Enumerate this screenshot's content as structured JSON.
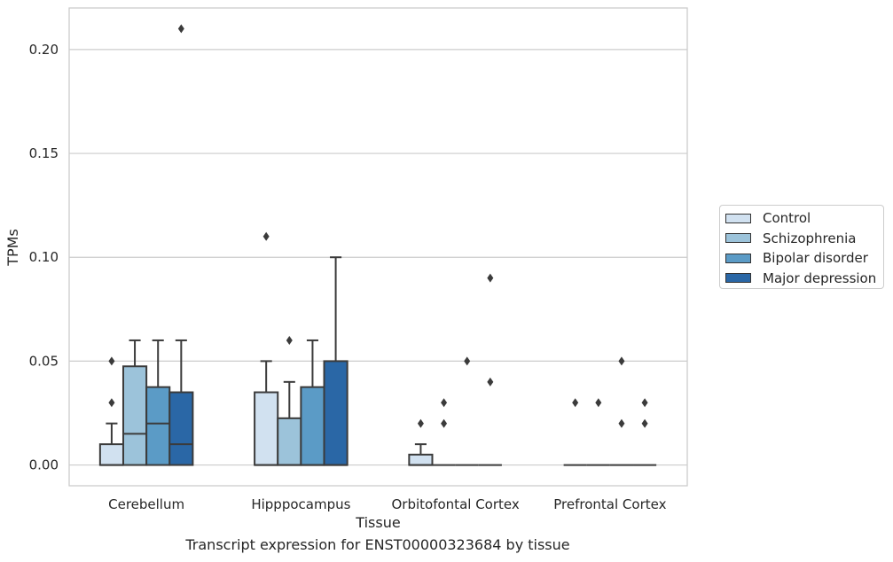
{
  "chart_data": {
    "type": "box",
    "xlabel": "Tissue",
    "ylabel": "TPMs",
    "caption": "Transcript expression for ENST00000323684 by tissue",
    "ylim": [
      -0.01,
      0.22
    ],
    "yticks": [
      0.0,
      0.05,
      0.1,
      0.15,
      0.2
    ],
    "ytick_labels": [
      "0.00",
      "0.05",
      "0.10",
      "0.15",
      "0.20"
    ],
    "grid": "horizontal",
    "legend_position": "center-right outside",
    "categories": [
      "Cerebellum",
      "Hipppocampus",
      "Orbitofontal Cortex",
      "Prefrontal Cortex"
    ],
    "series": [
      {
        "name": "Control",
        "color": "#d1e1f0",
        "boxes": [
          {
            "q1": 0.0,
            "median": 0.0,
            "q3": 0.01,
            "whislo": 0.0,
            "whishi": 0.02,
            "fliers": [
              0.03,
              0.05
            ]
          },
          {
            "q1": 0.0,
            "median": 0.0,
            "q3": 0.035,
            "whislo": 0.0,
            "whishi": 0.05,
            "fliers": [
              0.11
            ]
          },
          {
            "q1": 0.0,
            "median": 0.0,
            "q3": 0.005,
            "whislo": 0.0,
            "whishi": 0.01,
            "fliers": [
              0.02
            ]
          },
          {
            "q1": 0.0,
            "median": 0.0,
            "q3": 0.0,
            "whislo": 0.0,
            "whishi": 0.0,
            "fliers": [
              0.03
            ]
          }
        ]
      },
      {
        "name": "Schizophrenia",
        "color": "#9cc3da",
        "boxes": [
          {
            "q1": 0.0,
            "median": 0.015,
            "q3": 0.0475,
            "whislo": 0.0,
            "whishi": 0.06,
            "fliers": []
          },
          {
            "q1": 0.0,
            "median": 0.0,
            "q3": 0.0225,
            "whislo": 0.0,
            "whishi": 0.04,
            "fliers": [
              0.06
            ]
          },
          {
            "q1": 0.0,
            "median": 0.0,
            "q3": 0.0,
            "whislo": 0.0,
            "whishi": 0.0,
            "fliers": [
              0.02,
              0.03
            ]
          },
          {
            "q1": 0.0,
            "median": 0.0,
            "q3": 0.0,
            "whislo": 0.0,
            "whishi": 0.0,
            "fliers": [
              0.03
            ]
          }
        ]
      },
      {
        "name": "Bipolar disorder",
        "color": "#5b9bc6",
        "boxes": [
          {
            "q1": 0.0,
            "median": 0.02,
            "q3": 0.0375,
            "whislo": 0.0,
            "whishi": 0.06,
            "fliers": []
          },
          {
            "q1": 0.0,
            "median": 0.0,
            "q3": 0.0375,
            "whislo": 0.0,
            "whishi": 0.06,
            "fliers": []
          },
          {
            "q1": 0.0,
            "median": 0.0,
            "q3": 0.0,
            "whislo": 0.0,
            "whishi": 0.0,
            "fliers": [
              0.05
            ]
          },
          {
            "q1": 0.0,
            "median": 0.0,
            "q3": 0.0,
            "whislo": 0.0,
            "whishi": 0.0,
            "fliers": [
              0.02,
              0.05
            ]
          }
        ]
      },
      {
        "name": "Major depression",
        "color": "#2a67a6",
        "boxes": [
          {
            "q1": 0.0,
            "median": 0.01,
            "q3": 0.035,
            "whislo": 0.0,
            "whishi": 0.06,
            "fliers": [
              0.21
            ]
          },
          {
            "q1": 0.0,
            "median": 0.0,
            "q3": 0.05,
            "whislo": 0.0,
            "whishi": 0.1,
            "fliers": []
          },
          {
            "q1": 0.0,
            "median": 0.0,
            "q3": 0.0,
            "whislo": 0.0,
            "whishi": 0.0,
            "fliers": [
              0.04,
              0.09
            ]
          },
          {
            "q1": 0.0,
            "median": 0.0,
            "q3": 0.0,
            "whislo": 0.0,
            "whishi": 0.0,
            "fliers": [
              0.02,
              0.03
            ]
          }
        ]
      }
    ]
  }
}
